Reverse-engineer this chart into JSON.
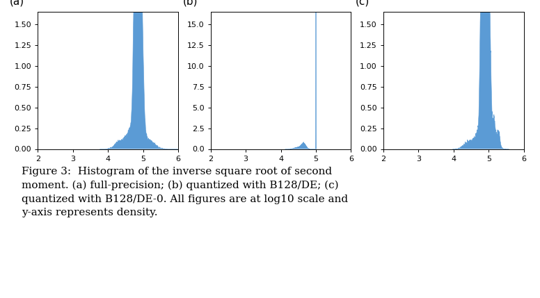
{
  "fig_width": 7.76,
  "fig_height": 4.29,
  "dpi": 100,
  "panel_labels": [
    "(a)",
    "(b)",
    "(c)"
  ],
  "fill_color": "#5b9bd5",
  "xlim": [
    2,
    6
  ],
  "xticks": [
    2,
    3,
    4,
    5,
    6
  ],
  "axes_ylim_a": [
    0,
    1.65
  ],
  "axes_yticks_a": [
    0.0,
    0.25,
    0.5,
    0.75,
    1.0,
    1.25,
    1.5
  ],
  "axes_ylim_b": [
    0,
    16.5
  ],
  "axes_yticks_b": [
    0.0,
    2.5,
    5.0,
    7.5,
    10.0,
    12.5,
    15.0
  ],
  "axes_ylim_c": [
    0,
    1.65
  ],
  "axes_yticks_c": [
    0.0,
    0.25,
    0.5,
    0.75,
    1.0,
    1.25,
    1.5
  ],
  "caption": "Figure 3:  Histogram of the inverse square root of second\nmoment. (a) full-precision; (b) quantized with B128/DE; (c)\nquantized with B128/DE-0. All figures are at log10 scale and\ny-axis represents density.",
  "caption_fontsize": 11,
  "panel_label_fontsize": 11,
  "tick_fontsize": 8
}
